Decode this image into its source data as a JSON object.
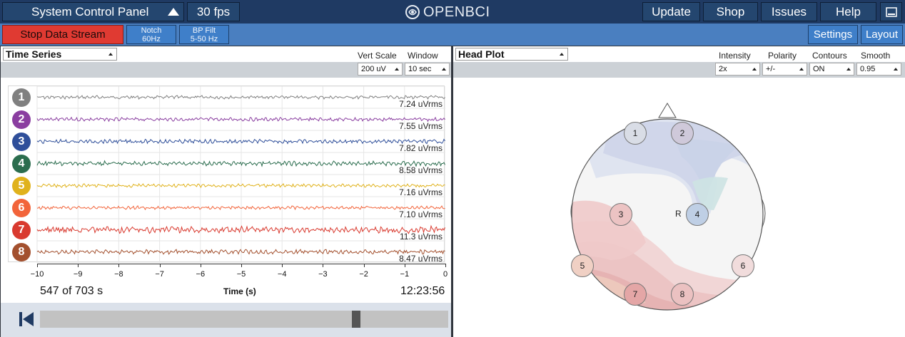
{
  "header": {
    "panel_label": "System Control Panel",
    "fps": "30 fps",
    "logo_text": "OPENBCI",
    "update": "Update",
    "shop": "Shop",
    "issues": "Issues",
    "help": "Help"
  },
  "toolbar": {
    "stop": "Stop Data Stream",
    "notch_line1": "Notch",
    "notch_line2": "60Hz",
    "bp_line1": "BP Filt",
    "bp_line2": "5-50 Hz",
    "settings": "Settings",
    "layout": "Layout"
  },
  "time_series": {
    "widget": "Time Series",
    "vert_scale_label": "Vert Scale",
    "window_label": "Window",
    "vert_scale": "200 uV",
    "window": "10 sec",
    "channels": [
      {
        "num": "1",
        "rms": "7.24 uVrms",
        "color": "#808080"
      },
      {
        "num": "2",
        "rms": "7.55 uVrms",
        "color": "#8a3ea0"
      },
      {
        "num": "3",
        "rms": "7.82 uVrms",
        "color": "#2f4f9a"
      },
      {
        "num": "4",
        "rms": "8.58 uVrms",
        "color": "#2b6d4e"
      },
      {
        "num": "5",
        "rms": "7.16 uVrms",
        "color": "#e0b21c"
      },
      {
        "num": "6",
        "rms": "7.10 uVrms",
        "color": "#f2643a"
      },
      {
        "num": "7",
        "rms": "11.3 uVrms",
        "color": "#d93a2f"
      },
      {
        "num": "8",
        "rms": "8.47 uVrms",
        "color": "#a3502e"
      }
    ],
    "x_ticks": [
      "−10",
      "−9",
      "−8",
      "−7",
      "−6",
      "−5",
      "−4",
      "−3",
      "−2",
      "−1",
      "0"
    ],
    "x_title": "Time (s)",
    "progress": "547 of 703 s",
    "clock": "12:23:56",
    "playback_position": 0.78
  },
  "head_plot": {
    "widget": "Head Plot",
    "intensity_label": "Intensity",
    "polarity_label": "Polarity",
    "contours_label": "Contours",
    "smooth_label": "Smooth",
    "intensity": "2x",
    "polarity": "+/-",
    "contours": "ON",
    "smooth": "0.95",
    "electrodes": [
      "1",
      "2",
      "3",
      "4",
      "5",
      "6",
      "7",
      "8"
    ],
    "ref": "R"
  }
}
